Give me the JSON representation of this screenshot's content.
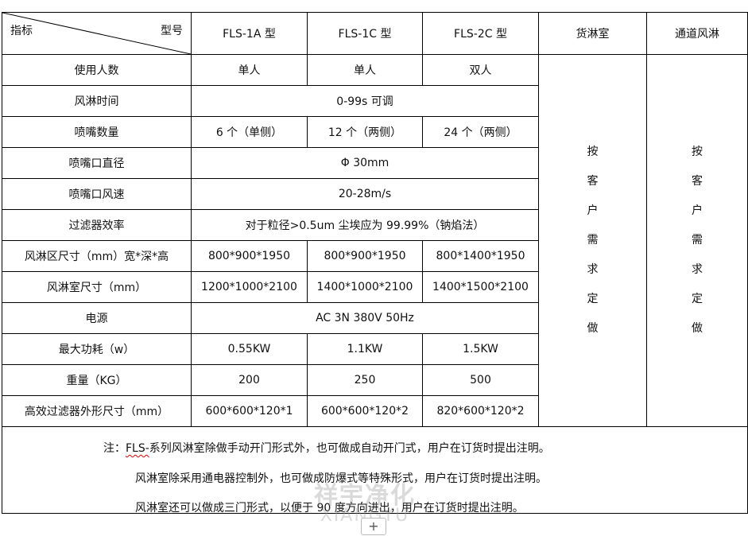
{
  "header": {
    "indicator": "指标",
    "model": "型号",
    "models": [
      "FLS-1A 型",
      "FLS-1C 型",
      "FLS-2C 型"
    ],
    "cargo": "货淋室",
    "tunnel": "通道风淋"
  },
  "rows": [
    {
      "label": "使用人数",
      "cells": [
        "单人",
        "单人",
        "双人"
      ]
    },
    {
      "label": "风淋时间",
      "merged": "0-99s 可调"
    },
    {
      "label": "喷嘴数量",
      "cells": [
        "6 个（单侧）",
        "12 个（两侧）",
        "24 个（两侧）"
      ]
    },
    {
      "label": "喷嘴口直径",
      "merged": "Φ 30mm"
    },
    {
      "label": "喷嘴口风速",
      "merged": "20-28m/s"
    },
    {
      "label": "过滤器效率",
      "merged": "对于粒径>0.5um 尘埃应为 99.99%（钠焰法）"
    },
    {
      "label": "风淋区尺寸（mm）宽*深*高",
      "cells": [
        "800*900*1950",
        "800*900*1950",
        "800*1400*1950"
      ]
    },
    {
      "label": "风淋室尺寸（mm）",
      "cells": [
        "1200*1000*2100",
        "1400*1000*2100",
        "1400*1500*2100"
      ]
    },
    {
      "label": "电源",
      "merged": "AC 3N 380V 50Hz"
    },
    {
      "label": "最大功耗（w）",
      "cells": [
        "0.55KW",
        "1.1KW",
        "1.5KW"
      ]
    },
    {
      "label": "重量（KG）",
      "cells": [
        "200",
        "250",
        "500"
      ]
    },
    {
      "label": "高效过滤器外形尺寸（mm）",
      "cells": [
        "600*600*120*1",
        "600*600*120*2",
        "820*600*120*2"
      ]
    }
  ],
  "custom": {
    "cargo": [
      "按",
      "客",
      "户",
      "需",
      "求",
      "定",
      "做"
    ],
    "tunnel": [
      "按",
      "客",
      "户",
      "需",
      "求",
      "定",
      "做"
    ]
  },
  "notes": {
    "prefix": "注：",
    "fls": "FLS-",
    "line1": "系列风淋室除做手动开门形式外，也可做成自动开门式，用户在订货时提出注明。",
    "line2": "风淋室除采用通电器控制外，也可做成防爆式等特殊形式，用户在订货时提出注明。",
    "line3": "风淋室还可以做成三门形式，以便于 90 度方向进出，用户在订货时提出注明。"
  },
  "watermark": {
    "cn": "祥宇净化",
    "en": "XIANGYU"
  },
  "add_button": "+"
}
